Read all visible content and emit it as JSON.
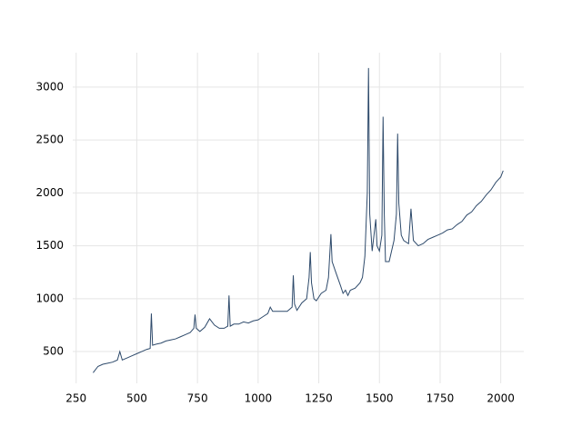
{
  "chart_data": {
    "type": "line",
    "x": [
      320,
      340,
      360,
      380,
      400,
      420,
      430,
      440,
      460,
      480,
      500,
      520,
      540,
      555,
      560,
      565,
      580,
      600,
      620,
      640,
      660,
      680,
      700,
      720,
      735,
      740,
      745,
      760,
      780,
      800,
      820,
      840,
      860,
      875,
      880,
      885,
      900,
      920,
      940,
      960,
      980,
      1000,
      1020,
      1040,
      1050,
      1060,
      1080,
      1100,
      1120,
      1140,
      1145,
      1150,
      1160,
      1180,
      1200,
      1210,
      1215,
      1220,
      1230,
      1240,
      1260,
      1280,
      1290,
      1300,
      1305,
      1320,
      1340,
      1350,
      1360,
      1370,
      1380,
      1400,
      1420,
      1430,
      1440,
      1450,
      1455,
      1460,
      1470,
      1480,
      1485,
      1490,
      1500,
      1510,
      1515,
      1520,
      1525,
      1540,
      1560,
      1570,
      1575,
      1580,
      1590,
      1600,
      1620,
      1630,
      1640,
      1660,
      1680,
      1700,
      1720,
      1740,
      1760,
      1780,
      1800,
      1820,
      1840,
      1860,
      1880,
      1900,
      1920,
      1940,
      1960,
      1980,
      2000,
      2010
    ],
    "series": [
      {
        "color": "#2e4a6b",
        "values": [
          300,
          360,
          380,
          390,
          400,
          420,
          500,
          420,
          440,
          460,
          480,
          500,
          520,
          530,
          860,
          560,
          570,
          580,
          600,
          610,
          620,
          640,
          660,
          680,
          720,
          850,
          720,
          690,
          730,
          810,
          750,
          720,
          720,
          740,
          1030,
          740,
          760,
          760,
          780,
          770,
          790,
          800,
          830,
          860,
          920,
          880,
          880,
          880,
          880,
          920,
          1220,
          950,
          890,
          960,
          1000,
          1200,
          1440,
          1150,
          1000,
          980,
          1050,
          1080,
          1200,
          1610,
          1350,
          1250,
          1120,
          1050,
          1080,
          1030,
          1080,
          1100,
          1150,
          1200,
          1400,
          2000,
          3180,
          1800,
          1450,
          1650,
          1750,
          1500,
          1450,
          1600,
          2720,
          1800,
          1350,
          1350,
          1550,
          1800,
          2560,
          1900,
          1600,
          1550,
          1520,
          1850,
          1550,
          1500,
          1520,
          1560,
          1580,
          1600,
          1620,
          1650,
          1660,
          1700,
          1730,
          1790,
          1820,
          1880,
          1920,
          1980,
          2030,
          2100,
          2150,
          2210
        ]
      }
    ],
    "xlim": [
      236,
      2095
    ],
    "ylim": [
      200,
      3325
    ],
    "xticks": [
      250,
      500,
      750,
      1000,
      1250,
      1500,
      1750,
      2000
    ],
    "yticks": [
      500,
      1000,
      1500,
      2000,
      2500,
      3000
    ],
    "grid": true
  }
}
